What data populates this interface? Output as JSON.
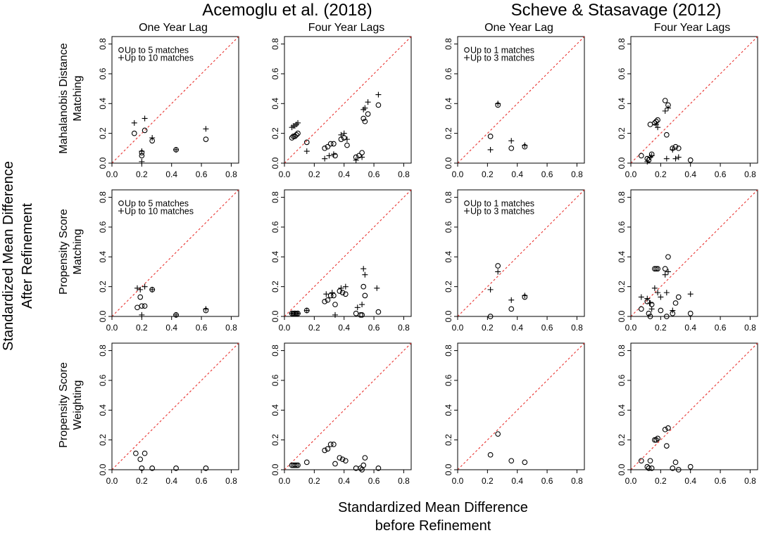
{
  "figure": {
    "group_titles": [
      "Acemoglu et al. (2018)",
      "Scheve & Stasavage (2012)"
    ],
    "column_titles": [
      "One Year Lag",
      "Four Year Lags",
      "One Year Lag",
      "Four Year Lags"
    ],
    "row_labels": [
      [
        "Mahalanobis Distance",
        "Matching"
      ],
      [
        "Propensity Score",
        "Matching"
      ],
      [
        "Propensity Score",
        "Weighting"
      ]
    ],
    "ylabel": [
      "Standardized Mean Difference",
      "After Refinement"
    ],
    "xlabel": [
      "Standardized Mean Difference",
      "before Refinement"
    ],
    "tick_labels": [
      "0.0",
      "0.2",
      "0.4",
      "0.6",
      "0.8"
    ],
    "colors": {
      "diagonal": "#e8322f",
      "baseline": "#000000",
      "points": "#000000"
    }
  },
  "chart_data": [
    {
      "type": "scatter",
      "row": 0,
      "col": 0,
      "xlim": [
        0,
        0.85
      ],
      "ylim": [
        0,
        0.85
      ],
      "legend_placement": "top-left",
      "reference_lines": [
        "y = x (red dashed)",
        "y = 0 (black dashed)"
      ],
      "series": [
        {
          "name": "Up to 5 matches",
          "marker": "circle",
          "x": [
            0.15,
            0.2,
            0.2,
            0.22,
            0.27,
            0.43,
            0.63
          ],
          "y": [
            0.2,
            0.07,
            0.05,
            0.22,
            0.15,
            0.09,
            0.16
          ]
        },
        {
          "name": "Up to 10 matches",
          "marker": "plus",
          "x": [
            0.15,
            0.2,
            0.2,
            0.22,
            0.27,
            0.43,
            0.63
          ],
          "y": [
            0.27,
            0.08,
            0.01,
            0.3,
            0.17,
            0.09,
            0.23
          ]
        }
      ]
    },
    {
      "type": "scatter",
      "row": 0,
      "col": 1,
      "xlim": [
        0,
        0.85
      ],
      "ylim": [
        0,
        0.85
      ],
      "reference_lines": [
        "y = x (red dashed)",
        "y = 0 (black dashed)"
      ],
      "series": [
        {
          "marker": "circle",
          "x": [
            0.05,
            0.06,
            0.07,
            0.08,
            0.09,
            0.15,
            0.27,
            0.29,
            0.31,
            0.33,
            0.34,
            0.38,
            0.4,
            0.42,
            0.48,
            0.5,
            0.52,
            0.53,
            0.54,
            0.56,
            0.63
          ],
          "y": [
            0.17,
            0.18,
            0.18,
            0.19,
            0.2,
            0.14,
            0.1,
            0.11,
            0.13,
            0.13,
            0.05,
            0.16,
            0.17,
            0.12,
            0.04,
            0.05,
            0.07,
            0.3,
            0.28,
            0.33,
            0.39
          ]
        },
        {
          "marker": "plus",
          "x": [
            0.05,
            0.06,
            0.07,
            0.08,
            0.09,
            0.15,
            0.27,
            0.3,
            0.33,
            0.38,
            0.4,
            0.42,
            0.48,
            0.52,
            0.53,
            0.54,
            0.56,
            0.63
          ],
          "y": [
            0.24,
            0.25,
            0.25,
            0.26,
            0.27,
            0.08,
            0.03,
            0.05,
            0.06,
            0.19,
            0.2,
            0.16,
            0.02,
            0.04,
            0.36,
            0.37,
            0.41,
            0.46
          ]
        }
      ]
    },
    {
      "type": "scatter",
      "row": 0,
      "col": 2,
      "xlim": [
        0,
        0.85
      ],
      "ylim": [
        0,
        0.85
      ],
      "legend_placement": "top-left",
      "reference_lines": [
        "y = x (red dashed)",
        "y = 0 (black dashed)"
      ],
      "series": [
        {
          "name": "Up to 1 matches",
          "marker": "circle",
          "x": [
            0.22,
            0.27,
            0.36,
            0.45
          ],
          "y": [
            0.18,
            0.39,
            0.1,
            0.11
          ]
        },
        {
          "name": "Up to 3 matches",
          "marker": "plus",
          "x": [
            0.22,
            0.27,
            0.36,
            0.45
          ],
          "y": [
            0.09,
            0.4,
            0.15,
            0.12
          ]
        }
      ]
    },
    {
      "type": "scatter",
      "row": 0,
      "col": 3,
      "xlim": [
        0,
        0.85
      ],
      "ylim": [
        0,
        0.85
      ],
      "reference_lines": [
        "y = x (red dashed)",
        "y = 0 (black dashed)"
      ],
      "series": [
        {
          "marker": "circle",
          "x": [
            0.07,
            0.11,
            0.12,
            0.13,
            0.14,
            0.16,
            0.17,
            0.18,
            0.23,
            0.24,
            0.25,
            0.28,
            0.3,
            0.32,
            0.4
          ],
          "y": [
            0.05,
            0.03,
            0.02,
            0.26,
            0.06,
            0.27,
            0.28,
            0.29,
            0.42,
            0.19,
            0.39,
            0.1,
            0.11,
            0.1,
            0.02
          ]
        },
        {
          "marker": "plus",
          "x": [
            0.11,
            0.13,
            0.14,
            0.17,
            0.18,
            0.23,
            0.24,
            0.25,
            0.28,
            0.3,
            0.32
          ],
          "y": [
            0.01,
            0.04,
            0.05,
            0.26,
            0.24,
            0.35,
            0.03,
            0.37,
            0.09,
            0.03,
            0.04
          ]
        }
      ]
    },
    {
      "type": "scatter",
      "row": 1,
      "col": 0,
      "xlim": [
        0,
        0.85
      ],
      "ylim": [
        0,
        0.85
      ],
      "legend_placement": "top-left",
      "reference_lines": [
        "y = x (red dashed)",
        "y = 0 (black dashed)"
      ],
      "series": [
        {
          "name": "Up to 5 matches",
          "marker": "circle",
          "x": [
            0.17,
            0.19,
            0.2,
            0.22,
            0.27,
            0.43,
            0.63
          ],
          "y": [
            0.06,
            0.13,
            0.07,
            0.07,
            0.18,
            0.01,
            0.04
          ]
        },
        {
          "name": "Up to 10 matches",
          "marker": "plus",
          "x": [
            0.17,
            0.19,
            0.2,
            0.22,
            0.27,
            0.43,
            0.63
          ],
          "y": [
            0.19,
            0.18,
            0.01,
            0.2,
            0.18,
            0.01,
            0.05
          ]
        }
      ]
    },
    {
      "type": "scatter",
      "row": 1,
      "col": 1,
      "xlim": [
        0,
        0.85
      ],
      "ylim": [
        0,
        0.85
      ],
      "reference_lines": [
        "y = x (red dashed)",
        "y = 0 (black dashed)"
      ],
      "series": [
        {
          "marker": "circle",
          "x": [
            0.05,
            0.06,
            0.07,
            0.08,
            0.09,
            0.15,
            0.27,
            0.29,
            0.31,
            0.33,
            0.34,
            0.37,
            0.39,
            0.41,
            0.48,
            0.51,
            0.52,
            0.53,
            0.54,
            0.63
          ],
          "y": [
            0.02,
            0.02,
            0.02,
            0.02,
            0.02,
            0.04,
            0.1,
            0.11,
            0.14,
            0.14,
            0.08,
            0.17,
            0.16,
            0.15,
            0.02,
            0.01,
            0.01,
            0.2,
            0.14,
            0.03
          ]
        },
        {
          "marker": "plus",
          "x": [
            0.05,
            0.07,
            0.09,
            0.15,
            0.28,
            0.32,
            0.34,
            0.38,
            0.41,
            0.49,
            0.52,
            0.53,
            0.54,
            0.62
          ],
          "y": [
            0.02,
            0.02,
            0.02,
            0.04,
            0.15,
            0.16,
            0.01,
            0.19,
            0.2,
            0.06,
            0.08,
            0.32,
            0.28,
            0.19
          ]
        }
      ]
    },
    {
      "type": "scatter",
      "row": 1,
      "col": 2,
      "xlim": [
        0,
        0.85
      ],
      "ylim": [
        0,
        0.85
      ],
      "legend_placement": "top-left",
      "reference_lines": [
        "y = x (red dashed)",
        "y = 0 (black dashed)"
      ],
      "series": [
        {
          "name": "Up to 1 matches",
          "marker": "circle",
          "x": [
            0.22,
            0.27,
            0.36,
            0.45
          ],
          "y": [
            0.0,
            0.34,
            0.05,
            0.13
          ]
        },
        {
          "name": "Up to 3 matches",
          "marker": "plus",
          "x": [
            0.22,
            0.27,
            0.36,
            0.45
          ],
          "y": [
            0.18,
            0.3,
            0.11,
            0.14
          ]
        }
      ]
    },
    {
      "type": "scatter",
      "row": 1,
      "col": 3,
      "xlim": [
        0,
        0.85
      ],
      "ylim": [
        0,
        0.85
      ],
      "reference_lines": [
        "y = x (red dashed)",
        "y = 0 (black dashed)"
      ],
      "series": [
        {
          "marker": "circle",
          "x": [
            0.07,
            0.11,
            0.12,
            0.13,
            0.14,
            0.16,
            0.17,
            0.18,
            0.2,
            0.23,
            0.24,
            0.25,
            0.28,
            0.3,
            0.32,
            0.4
          ],
          "y": [
            0.05,
            0.1,
            0.02,
            0.0,
            0.08,
            0.32,
            0.32,
            0.32,
            0.04,
            0.32,
            0.0,
            0.4,
            0.02,
            0.09,
            0.13,
            0.02
          ]
        },
        {
          "marker": "plus",
          "x": [
            0.07,
            0.11,
            0.13,
            0.14,
            0.16,
            0.18,
            0.2,
            0.23,
            0.24,
            0.25,
            0.28,
            0.4
          ],
          "y": [
            0.13,
            0.12,
            0.09,
            0.05,
            0.19,
            0.16,
            0.13,
            0.28,
            0.16,
            0.3,
            0.04,
            0.15
          ]
        }
      ]
    },
    {
      "type": "scatter",
      "row": 2,
      "col": 0,
      "xlim": [
        0,
        0.85
      ],
      "ylim": [
        0,
        0.85
      ],
      "reference_lines": [
        "y = x (red dashed)",
        "y = 0 (black dashed)"
      ],
      "series": [
        {
          "marker": "circle",
          "x": [
            0.16,
            0.19,
            0.2,
            0.22,
            0.27,
            0.43,
            0.63
          ],
          "y": [
            0.11,
            0.07,
            0.01,
            0.11,
            0.01,
            0.01,
            0.01
          ]
        }
      ]
    },
    {
      "type": "scatter",
      "row": 2,
      "col": 1,
      "xlim": [
        0,
        0.85
      ],
      "ylim": [
        0,
        0.85
      ],
      "reference_lines": [
        "y = x (red dashed)",
        "y = 0 (black dashed)"
      ],
      "series": [
        {
          "marker": "circle",
          "x": [
            0.05,
            0.06,
            0.07,
            0.08,
            0.09,
            0.15,
            0.27,
            0.29,
            0.31,
            0.33,
            0.34,
            0.37,
            0.39,
            0.41,
            0.48,
            0.51,
            0.52,
            0.53,
            0.54,
            0.63
          ],
          "y": [
            0.03,
            0.03,
            0.03,
            0.03,
            0.03,
            0.05,
            0.13,
            0.14,
            0.17,
            0.17,
            0.04,
            0.08,
            0.07,
            0.06,
            0.01,
            0.01,
            0.0,
            0.03,
            0.08,
            0.01
          ]
        }
      ]
    },
    {
      "type": "scatter",
      "row": 2,
      "col": 2,
      "xlim": [
        0,
        0.85
      ],
      "ylim": [
        0,
        0.85
      ],
      "reference_lines": [
        "y = x (red dashed)",
        "y = 0 (black dashed)"
      ],
      "series": [
        {
          "marker": "circle",
          "x": [
            0.22,
            0.27,
            0.36,
            0.45
          ],
          "y": [
            0.1,
            0.24,
            0.06,
            0.05
          ]
        }
      ]
    },
    {
      "type": "scatter",
      "row": 2,
      "col": 3,
      "xlim": [
        0,
        0.85
      ],
      "ylim": [
        0,
        0.85
      ],
      "reference_lines": [
        "y = x (red dashed)",
        "y = 0 (black dashed)"
      ],
      "series": [
        {
          "marker": "circle",
          "x": [
            0.07,
            0.11,
            0.12,
            0.13,
            0.14,
            0.16,
            0.17,
            0.18,
            0.23,
            0.24,
            0.25,
            0.28,
            0.3,
            0.32,
            0.4
          ],
          "y": [
            0.06,
            0.02,
            0.01,
            0.06,
            0.01,
            0.2,
            0.2,
            0.21,
            0.27,
            0.16,
            0.28,
            0.01,
            0.05,
            0.0,
            0.02
          ]
        }
      ]
    }
  ]
}
